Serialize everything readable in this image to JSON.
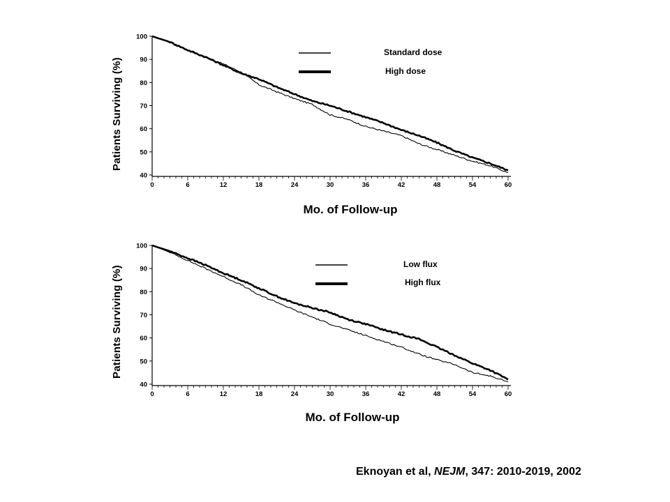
{
  "chart_data": [
    {
      "type": "line",
      "ylabel": "Patients Surviving (%)",
      "xlabel": "Mo. of Follow-up",
      "xlim": [
        0,
        60
      ],
      "ylim": [
        40,
        100
      ],
      "xticks": [
        0,
        6,
        12,
        18,
        24,
        30,
        36,
        42,
        48,
        54,
        60
      ],
      "yticks": [
        40,
        50,
        60,
        70,
        80,
        90,
        100
      ],
      "x": [
        0,
        3,
        6,
        9,
        12,
        15,
        18,
        21,
        24,
        27,
        30,
        33,
        36,
        39,
        42,
        45,
        48,
        51,
        54,
        57,
        60
      ],
      "series": [
        {
          "name": "Standard dose",
          "style": "thin",
          "values": [
            100,
            97.5,
            94,
            91,
            88,
            84.5,
            79,
            76,
            73,
            70.5,
            66,
            64,
            61,
            59,
            57,
            53.5,
            51,
            48.5,
            46,
            44,
            41
          ]
        },
        {
          "name": "High dose",
          "style": "thick",
          "values": [
            100,
            97.5,
            94,
            91,
            87.5,
            84,
            81.5,
            78,
            75,
            72,
            70,
            67.5,
            65,
            62.5,
            59.5,
            57,
            54,
            50.5,
            47.5,
            45,
            42
          ]
        }
      ]
    },
    {
      "type": "line",
      "ylabel": "Patients Surviving (%)",
      "xlabel": "Mo. of Follow-up",
      "xlim": [
        0,
        60
      ],
      "ylim": [
        40,
        100
      ],
      "xticks": [
        0,
        6,
        12,
        18,
        24,
        30,
        36,
        42,
        48,
        54,
        60
      ],
      "yticks": [
        40,
        50,
        60,
        70,
        80,
        90,
        100
      ],
      "x": [
        0,
        3,
        6,
        9,
        12,
        15,
        18,
        21,
        24,
        27,
        30,
        33,
        36,
        39,
        42,
        45,
        48,
        51,
        54,
        57,
        60
      ],
      "series": [
        {
          "name": "Low flux",
          "style": "thin",
          "values": [
            100,
            97,
            93.5,
            90,
            86.5,
            83,
            78.5,
            75.5,
            72,
            69,
            66,
            63.5,
            61,
            58.5,
            56,
            53,
            50.5,
            48.5,
            45,
            43.5,
            41
          ]
        },
        {
          "name": "High flux",
          "style": "thick",
          "values": [
            100,
            97.5,
            94.5,
            91.5,
            88,
            85,
            81.5,
            78,
            75,
            73,
            71,
            68,
            66,
            63.5,
            61.5,
            59.5,
            56,
            52.5,
            49,
            46,
            42
          ]
        }
      ]
    }
  ],
  "citation": {
    "authors": "Eknoyan et al,",
    "journal": "NEJM",
    "details": ", 347: 2010-2019, 2002"
  }
}
